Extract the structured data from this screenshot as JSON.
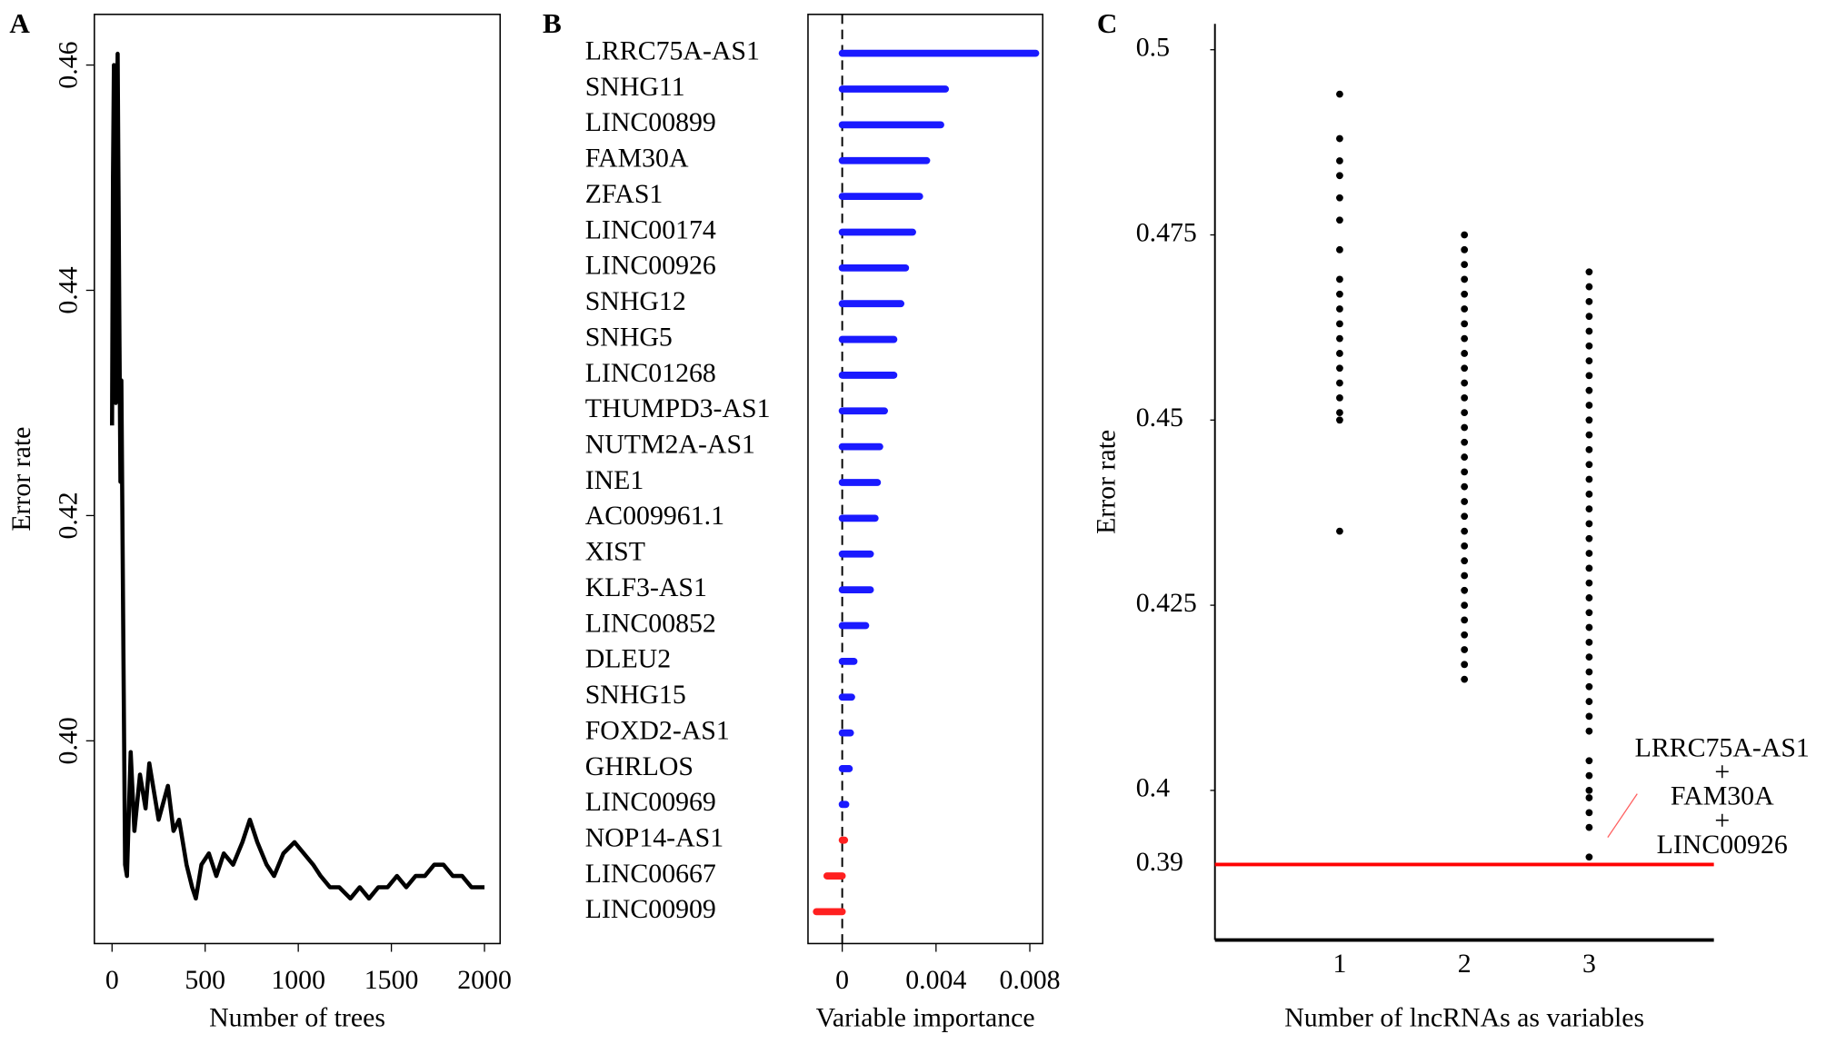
{
  "chart_data": [
    {
      "type": "line",
      "panel": "A",
      "xlabel": "Number of trees",
      "ylabel": "Error rate",
      "color": "#000000",
      "x": [
        0,
        5,
        10,
        15,
        20,
        25,
        30,
        40,
        45,
        50,
        60,
        70,
        80,
        100,
        120,
        150,
        180,
        200,
        250,
        300,
        330,
        360,
        400,
        430,
        450,
        480,
        520,
        560,
        600,
        650,
        700,
        740,
        780,
        830,
        870,
        920,
        980,
        1030,
        1080,
        1120,
        1170,
        1220,
        1280,
        1330,
        1380,
        1430,
        1480,
        1530,
        1580,
        1630,
        1680,
        1730,
        1780,
        1830,
        1880,
        1930,
        1980,
        2000
      ],
      "values": [
        0.428,
        0.45,
        0.46,
        0.458,
        0.43,
        0.452,
        0.461,
        0.435,
        0.423,
        0.432,
        0.41,
        0.389,
        0.388,
        0.399,
        0.392,
        0.397,
        0.394,
        0.398,
        0.393,
        0.396,
        0.392,
        0.393,
        0.389,
        0.387,
        0.386,
        0.389,
        0.39,
        0.388,
        0.39,
        0.389,
        0.391,
        0.393,
        0.391,
        0.389,
        0.388,
        0.39,
        0.391,
        0.39,
        0.389,
        0.388,
        0.387,
        0.387,
        0.386,
        0.387,
        0.386,
        0.387,
        0.387,
        0.388,
        0.387,
        0.388,
        0.388,
        0.389,
        0.389,
        0.388,
        0.388,
        0.387,
        0.387,
        0.387
      ],
      "xlim": [
        -95,
        2084
      ],
      "ylim": [
        0.382,
        0.4645
      ],
      "xticks": [
        0,
        500,
        1000,
        1500,
        2000
      ],
      "yticks": [
        {
          "value": 0.4,
          "label": "0.40"
        },
        0.42,
        0.44,
        0.46
      ]
    },
    {
      "type": "dotbar",
      "panel": "B",
      "xlabel": "Variable importance",
      "categories": [
        "LRRC75A-AS1",
        "SNHG11",
        "LINC00899",
        "FAM30A",
        "ZFAS1",
        "LINC00174",
        "LINC00926",
        "SNHG12",
        "SNHG5",
        "LINC01268",
        "THUMPD3-AS1",
        "NUTM2A-AS1",
        "INE1",
        "AC009961.1",
        "XIST",
        "KLF3-AS1",
        "LINC00852",
        "DLEU2",
        "SNHG15",
        "FOXD2-AS1",
        "GHRLOS",
        "LINC00969",
        "NOP14-AS1",
        "LINC00667",
        "LINC00909"
      ],
      "values": [
        0.00825,
        0.0044,
        0.0042,
        0.0036,
        0.0033,
        0.003,
        0.0027,
        0.0025,
        0.0022,
        0.0022,
        0.0018,
        0.0016,
        0.0015,
        0.0014,
        0.0012,
        0.0012,
        0.001,
        0.0005,
        0.0004,
        0.00035,
        0.0003,
        0.00015,
        0.0001,
        -0.00065,
        -0.0011
      ],
      "colors": [
        "#1a1aff",
        "#1a1aff",
        "#1a1aff",
        "#1a1aff",
        "#1a1aff",
        "#1a1aff",
        "#1a1aff",
        "#1a1aff",
        "#1a1aff",
        "#1a1aff",
        "#1a1aff",
        "#1a1aff",
        "#1a1aff",
        "#1a1aff",
        "#1a1aff",
        "#1a1aff",
        "#1a1aff",
        "#1a1aff",
        "#1a1aff",
        "#1a1aff",
        "#1a1aff",
        "#1a1aff",
        "#ff2020",
        "#ff2020",
        "#ff2020"
      ],
      "xlim": [
        -0.00146,
        0.00855
      ],
      "xticks": [
        0,
        0.004,
        0.008
      ]
    },
    {
      "type": "scatter",
      "panel": "C",
      "xlabel": "Number of lncRNAs as variables",
      "ylabel": "Error rate",
      "color": "#000000",
      "x": [
        1,
        1,
        1,
        1,
        1,
        1,
        1,
        1,
        1,
        1,
        1,
        1,
        1,
        1,
        1,
        1,
        1,
        1,
        1,
        2,
        2,
        2,
        2,
        2,
        2,
        2,
        2,
        2,
        2,
        2,
        2,
        2,
        2,
        2,
        2,
        2,
        2,
        2,
        2,
        2,
        2,
        2,
        2,
        2,
        2,
        2,
        2,
        2,
        2,
        2,
        3,
        3,
        3,
        3,
        3,
        3,
        3,
        3,
        3,
        3,
        3,
        3,
        3,
        3,
        3,
        3,
        3,
        3,
        3,
        3,
        3,
        3,
        3,
        3,
        3,
        3,
        3,
        3,
        3,
        3,
        3,
        3,
        3,
        3,
        3,
        3,
        3,
        3,
        3
      ],
      "values": [
        0.494,
        0.488,
        0.485,
        0.483,
        0.48,
        0.477,
        0.473,
        0.469,
        0.467,
        0.465,
        0.463,
        0.461,
        0.459,
        0.457,
        0.455,
        0.453,
        0.451,
        0.45,
        0.435,
        0.475,
        0.473,
        0.471,
        0.469,
        0.467,
        0.465,
        0.463,
        0.461,
        0.459,
        0.457,
        0.455,
        0.453,
        0.451,
        0.449,
        0.447,
        0.445,
        0.443,
        0.441,
        0.439,
        0.437,
        0.435,
        0.433,
        0.431,
        0.429,
        0.427,
        0.425,
        0.423,
        0.421,
        0.419,
        0.417,
        0.415,
        0.47,
        0.468,
        0.466,
        0.464,
        0.462,
        0.46,
        0.458,
        0.456,
        0.454,
        0.452,
        0.45,
        0.448,
        0.446,
        0.444,
        0.442,
        0.44,
        0.438,
        0.436,
        0.434,
        0.432,
        0.43,
        0.428,
        0.426,
        0.424,
        0.422,
        0.42,
        0.418,
        0.416,
        0.414,
        0.412,
        0.41,
        0.408,
        0.404,
        0.402,
        0.4,
        0.399,
        0.397,
        0.395,
        0.391
      ],
      "xlim": [
        0,
        4
      ],
      "ylim": [
        0.3798,
        0.5035
      ],
      "xticks": [
        1,
        2,
        3
      ],
      "yticks": [
        0.5,
        0.475,
        0.45,
        0.425,
        0.4
      ],
      "hline": {
        "value": 0.39,
        "label": "0.39",
        "color": "#ff0000"
      },
      "annotation": [
        "LRRC75A-AS1",
        "+",
        "FAM30A",
        "+",
        "LINC00926"
      ]
    }
  ]
}
